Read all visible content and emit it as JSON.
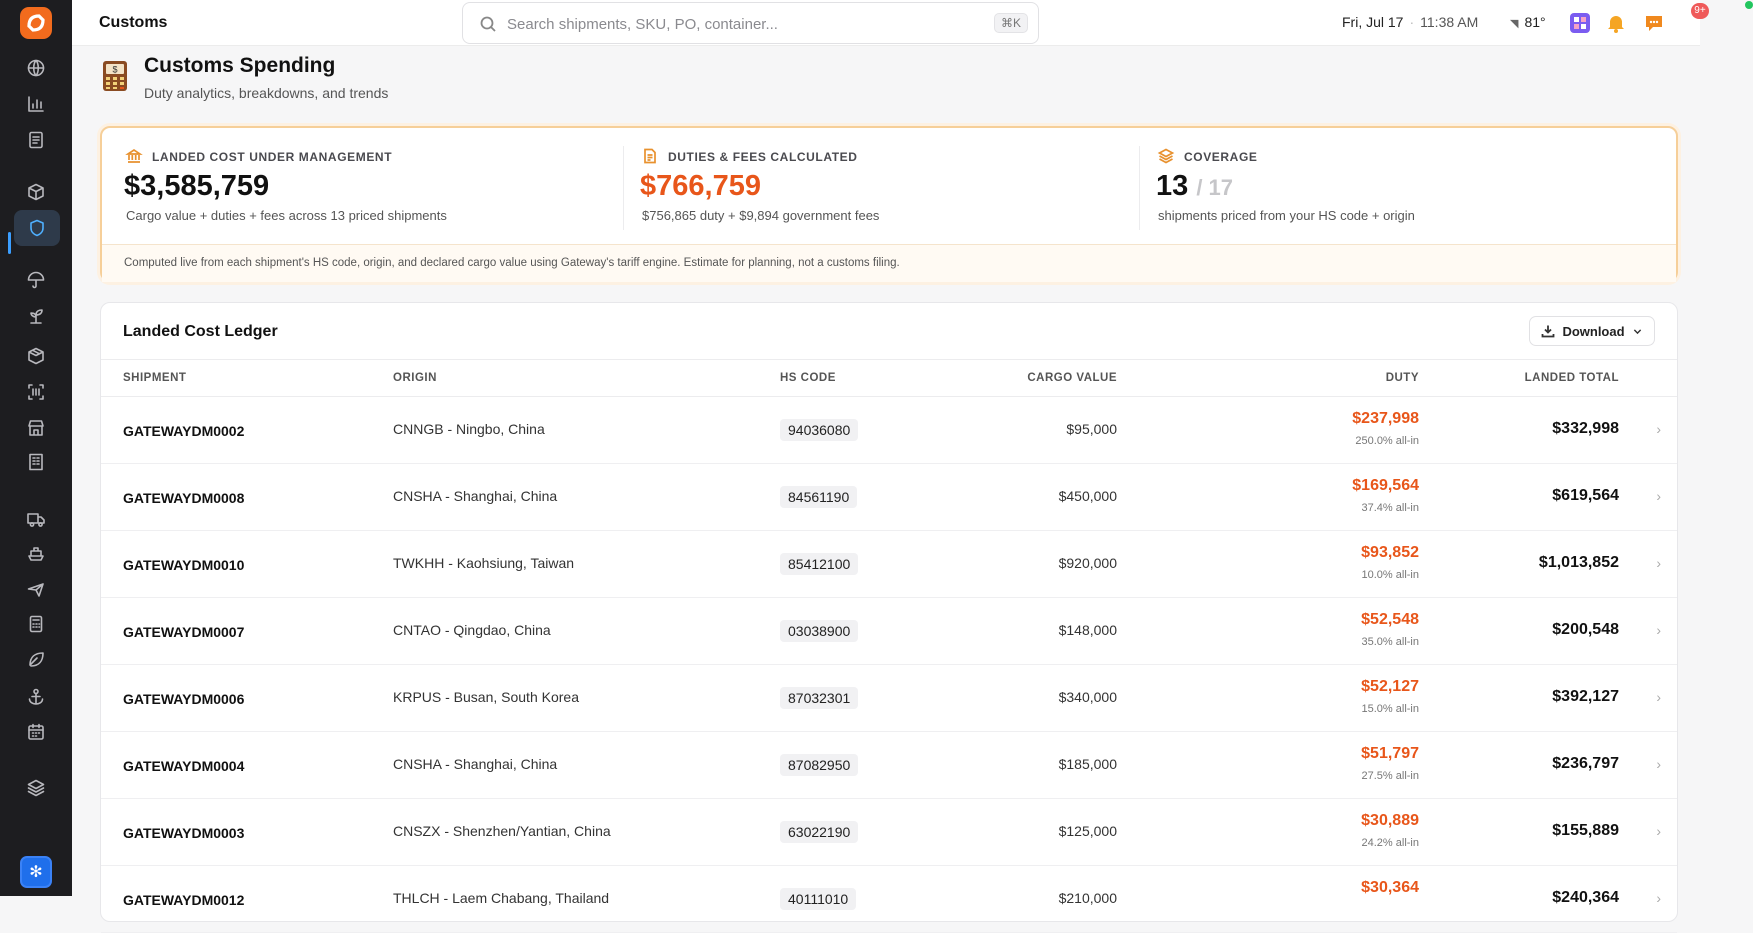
{
  "app": {
    "page_label": "Customs"
  },
  "search": {
    "placeholder": "Search shipments, SKU, PO, container...",
    "shortcut": "⌘K"
  },
  "topbar": {
    "date": "Fri, Jul 17",
    "time": "11:38 AM",
    "temperature": "81°",
    "notification_count": "9+"
  },
  "sidebar": {
    "icons": [
      "globe-icon",
      "bar-chart-icon",
      "document-icon",
      "cube-icon",
      "shield-icon",
      "umbrella-icon",
      "sprout-icon",
      "package-icon",
      "scan-icon",
      "store-icon",
      "building-icon",
      "truck-icon",
      "ship-icon",
      "plane-icon",
      "calculator-icon",
      "leaf-icon",
      "anchor-icon",
      "calendar-icon",
      "layers-icon"
    ],
    "active": "shield-icon"
  },
  "header": {
    "title": "Customs Spending",
    "subtitle": "Duty analytics, breakdowns, and trends"
  },
  "summary": {
    "landed": {
      "label": "LANDED COST UNDER MANAGEMENT",
      "value": "$3,585,759",
      "desc": "Cargo value + duties + fees across 13 priced shipments"
    },
    "duties": {
      "label": "DUTIES & FEES CALCULATED",
      "value": "$766,759",
      "desc": "$756,865 duty + $9,894 government fees"
    },
    "coverage": {
      "label": "COVERAGE",
      "value": "13",
      "denominator": "/ 17",
      "desc": "shipments priced from your HS code + origin"
    },
    "footnote": "Computed live from each shipment's HS code, origin, and declared cargo value using Gateway's tariff engine. Estimate for planning, not a customs filing."
  },
  "ledger": {
    "title": "Landed Cost Ledger",
    "download_label": "Download",
    "columns": {
      "shipment": "SHIPMENT",
      "origin": "ORIGIN",
      "hs_code": "HS CODE",
      "cargo_value": "CARGO VALUE",
      "duty": "DUTY",
      "landed_total": "LANDED TOTAL"
    },
    "rows": [
      {
        "shipment": "GATEWAYDM0002",
        "origin": "CNNGB - Ningbo, China",
        "hs_code": "94036080",
        "cargo_value": "$95,000",
        "duty": "$237,998",
        "duty_pct": "250.0% all-in",
        "landed_total": "$332,998"
      },
      {
        "shipment": "GATEWAYDM0008",
        "origin": "CNSHA - Shanghai, China",
        "hs_code": "84561190",
        "cargo_value": "$450,000",
        "duty": "$169,564",
        "duty_pct": "37.4% all-in",
        "landed_total": "$619,564"
      },
      {
        "shipment": "GATEWAYDM0010",
        "origin": "TWKHH - Kaohsiung, Taiwan",
        "hs_code": "85412100",
        "cargo_value": "$920,000",
        "duty": "$93,852",
        "duty_pct": "10.0% all-in",
        "landed_total": "$1,013,852"
      },
      {
        "shipment": "GATEWAYDM0007",
        "origin": "CNTAO - Qingdao, China",
        "hs_code": "03038900",
        "cargo_value": "$148,000",
        "duty": "$52,548",
        "duty_pct": "35.0% all-in",
        "landed_total": "$200,548"
      },
      {
        "shipment": "GATEWAYDM0006",
        "origin": "KRPUS - Busan, South Korea",
        "hs_code": "87032301",
        "cargo_value": "$340,000",
        "duty": "$52,127",
        "duty_pct": "15.0% all-in",
        "landed_total": "$392,127"
      },
      {
        "shipment": "GATEWAYDM0004",
        "origin": "CNSHA - Shanghai, China",
        "hs_code": "87082950",
        "cargo_value": "$185,000",
        "duty": "$51,797",
        "duty_pct": "27.5% all-in",
        "landed_total": "$236,797"
      },
      {
        "shipment": "GATEWAYDM0003",
        "origin": "CNSZX - Shenzhen/Yantian, China",
        "hs_code": "63022190",
        "cargo_value": "$125,000",
        "duty": "$30,889",
        "duty_pct": "24.2% all-in",
        "landed_total": "$155,889"
      },
      {
        "shipment": "GATEWAYDM0012",
        "origin": "THLCH - Laem Chabang, Thailand",
        "hs_code": "40111010",
        "cargo_value": "$210,000",
        "duty": "$30,364",
        "duty_pct": "",
        "landed_total": "$240,364"
      }
    ]
  }
}
